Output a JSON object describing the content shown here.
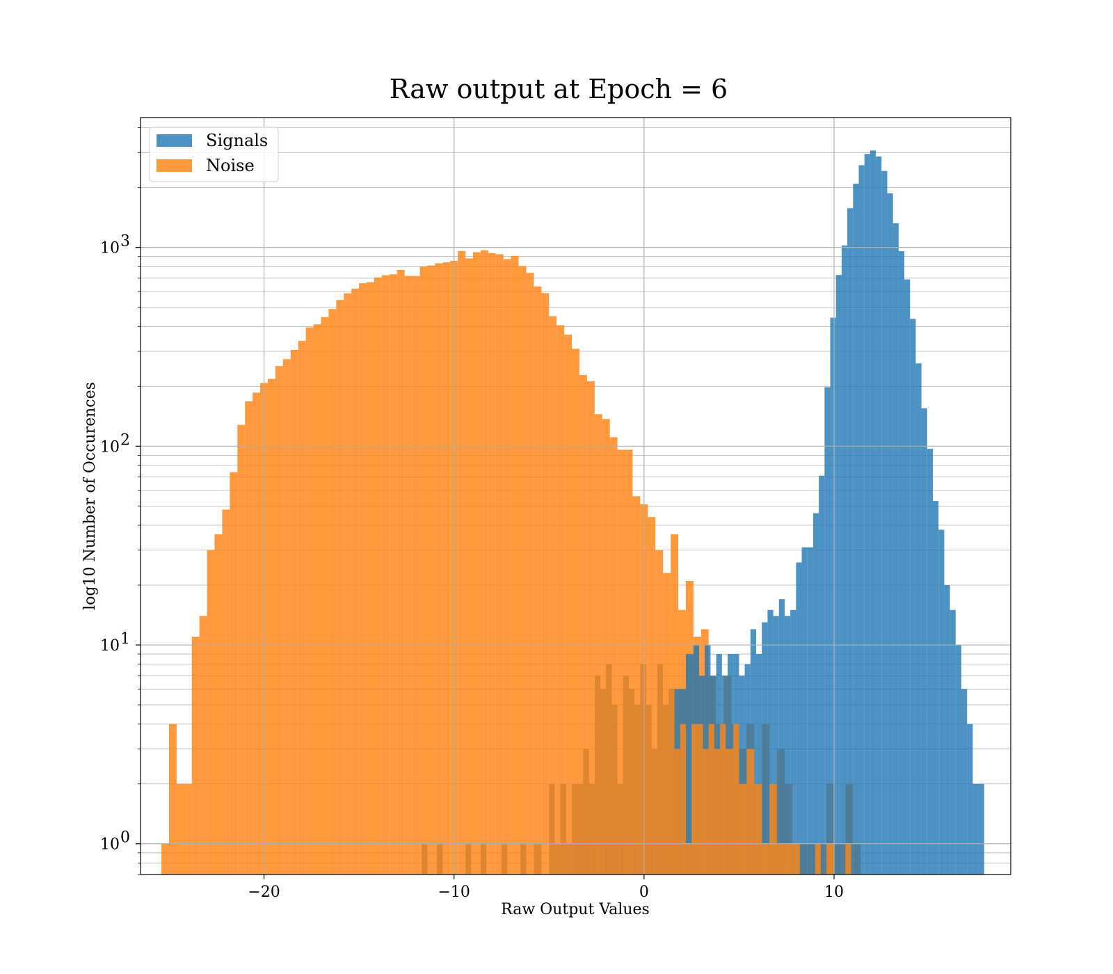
{
  "chart_data": {
    "type": "bar",
    "histogram": true,
    "title": "Raw output at Epoch = 6",
    "xlabel": "Raw Output Values",
    "ylabel": "log10 Number of Occurences",
    "xlim": [
      -26.5,
      19.3
    ],
    "ylim": [
      0.7,
      4500
    ],
    "y_scale": "log",
    "grid": true,
    "legend": "top-left",
    "x_ticks": [
      -20,
      -10,
      0,
      10
    ],
    "x_tick_labels": [
      "−20",
      "−10",
      "0",
      "10"
    ],
    "y_ticks": [
      1,
      10,
      100,
      1000
    ],
    "y_tick_labels": [
      "10",
      "10",
      "10",
      "10"
    ],
    "y_tick_exponents": [
      "0",
      "1",
      "2",
      "3"
    ],
    "series": [
      {
        "name": "Signals",
        "color": "#1f77b4",
        "bins": [
          [
            -3.8,
            -0.2,
            1
          ],
          [
            -0.2,
            1.5,
            1
          ],
          [
            1.5,
            2.2,
            6
          ],
          [
            2.2,
            2.6,
            9
          ],
          [
            2.6,
            2.9,
            10
          ],
          [
            2.9,
            3.2,
            7
          ],
          [
            3.2,
            3.5,
            10
          ],
          [
            3.5,
            3.8,
            7
          ],
          [
            3.8,
            4.1,
            9
          ],
          [
            4.1,
            4.4,
            7
          ],
          [
            4.4,
            4.7,
            9
          ],
          [
            4.7,
            5.0,
            9
          ],
          [
            5.0,
            5.3,
            7
          ],
          [
            5.3,
            5.6,
            8
          ],
          [
            5.6,
            5.9,
            12
          ],
          [
            5.9,
            6.2,
            9
          ],
          [
            6.2,
            6.5,
            13
          ],
          [
            6.5,
            6.8,
            15
          ],
          [
            6.8,
            7.1,
            14
          ],
          [
            7.1,
            7.4,
            17
          ],
          [
            7.4,
            7.7,
            14
          ],
          [
            7.7,
            8.0,
            15
          ],
          [
            8.0,
            8.3,
            26
          ],
          [
            8.3,
            8.6,
            31
          ],
          [
            8.6,
            8.9,
            31
          ],
          [
            8.9,
            9.2,
            46
          ],
          [
            9.2,
            9.5,
            71
          ],
          [
            9.5,
            9.8,
            198
          ],
          [
            9.8,
            10.1,
            443
          ],
          [
            10.1,
            10.4,
            727
          ],
          [
            10.4,
            10.7,
            1023
          ],
          [
            10.7,
            11.0,
            1575
          ],
          [
            11.0,
            11.3,
            2092
          ],
          [
            11.3,
            11.6,
            2593
          ],
          [
            11.6,
            11.9,
            2952
          ],
          [
            11.9,
            12.2,
            3072
          ],
          [
            12.2,
            12.5,
            2868
          ],
          [
            12.5,
            12.8,
            2424
          ],
          [
            12.8,
            13.1,
            1871
          ],
          [
            13.1,
            13.4,
            1323
          ],
          [
            13.4,
            13.7,
            957
          ],
          [
            13.7,
            14.0,
            690
          ],
          [
            14.0,
            14.3,
            437
          ],
          [
            14.3,
            14.6,
            261
          ],
          [
            14.6,
            14.9,
            155
          ],
          [
            14.9,
            15.2,
            97
          ],
          [
            15.2,
            15.5,
            53
          ],
          [
            15.5,
            15.8,
            38
          ],
          [
            15.8,
            16.1,
            20
          ],
          [
            16.1,
            16.4,
            15
          ],
          [
            16.4,
            16.7,
            10
          ],
          [
            16.7,
            17.0,
            6
          ],
          [
            17.0,
            17.3,
            4
          ],
          [
            17.3,
            17.6,
            2
          ],
          [
            17.6,
            17.9,
            2
          ]
        ]
      },
      {
        "name": "Noise",
        "color": "#ff7f0e",
        "bins": [
          [
            -25.4,
            -25.0,
            1
          ],
          [
            -25.0,
            -24.6,
            4
          ],
          [
            -24.6,
            -23.8,
            2
          ],
          [
            -23.8,
            -23.4,
            11
          ],
          [
            -23.4,
            -23.0,
            14
          ],
          [
            -23.0,
            -22.6,
            30
          ],
          [
            -22.6,
            -22.2,
            36
          ],
          [
            -22.2,
            -21.8,
            48
          ],
          [
            -21.8,
            -21.4,
            74
          ],
          [
            -21.4,
            -21.0,
            128
          ],
          [
            -21.0,
            -20.6,
            168
          ],
          [
            -20.6,
            -20.2,
            186
          ],
          [
            -20.2,
            -19.8,
            208
          ],
          [
            -19.8,
            -19.4,
            218
          ],
          [
            -19.4,
            -19.0,
            253
          ],
          [
            -19.0,
            -18.6,
            274
          ],
          [
            -18.6,
            -18.2,
            305
          ],
          [
            -18.2,
            -17.8,
            339
          ],
          [
            -17.8,
            -17.4,
            396
          ],
          [
            -17.4,
            -17.0,
            410
          ],
          [
            -17.0,
            -16.6,
            446
          ],
          [
            -16.6,
            -16.2,
            490
          ],
          [
            -16.2,
            -15.8,
            544
          ],
          [
            -15.8,
            -15.4,
            588
          ],
          [
            -15.4,
            -15.0,
            620
          ],
          [
            -15.0,
            -14.6,
            660
          ],
          [
            -14.6,
            -14.2,
            669
          ],
          [
            -14.2,
            -13.8,
            706
          ],
          [
            -13.8,
            -13.4,
            725
          ],
          [
            -13.4,
            -13.0,
            733
          ],
          [
            -13.0,
            -12.6,
            770
          ],
          [
            -12.6,
            -12.2,
            719
          ],
          [
            -12.2,
            -11.8,
            718
          ],
          [
            -11.8,
            -11.4,
            801
          ],
          [
            -11.4,
            -11.0,
            811
          ],
          [
            -11.0,
            -10.6,
            832
          ],
          [
            -10.6,
            -10.2,
            841
          ],
          [
            -10.2,
            -9.8,
            856
          ],
          [
            -9.8,
            -9.4,
            959
          ],
          [
            -9.4,
            -9.0,
            881
          ],
          [
            -9.0,
            -8.6,
            946
          ],
          [
            -8.6,
            -8.2,
            967
          ],
          [
            -8.2,
            -7.8,
            936
          ],
          [
            -7.8,
            -7.4,
            924
          ],
          [
            -7.4,
            -7.0,
            873
          ],
          [
            -7.0,
            -6.6,
            907
          ],
          [
            -6.6,
            -6.2,
            806
          ],
          [
            -6.2,
            -5.8,
            745
          ],
          [
            -5.8,
            -5.4,
            636
          ],
          [
            -5.4,
            -5.0,
            589
          ],
          [
            -5.0,
            -4.6,
            451
          ],
          [
            -4.6,
            -4.2,
            406
          ],
          [
            -4.2,
            -3.8,
            364
          ],
          [
            -3.8,
            -3.4,
            309
          ],
          [
            -3.4,
            -3.0,
            228
          ],
          [
            -3.0,
            -2.6,
            212
          ],
          [
            -2.6,
            -2.2,
            145
          ],
          [
            -2.2,
            -1.8,
            137
          ],
          [
            -1.8,
            -1.4,
            111
          ],
          [
            -1.4,
            -1.0,
            96
          ],
          [
            -1.0,
            -0.6,
            96
          ],
          [
            -0.6,
            -0.2,
            56
          ],
          [
            -0.2,
            0.2,
            51
          ],
          [
            0.2,
            0.6,
            44
          ],
          [
            0.6,
            1.0,
            30
          ],
          [
            1.0,
            1.4,
            23
          ],
          [
            1.4,
            1.8,
            36
          ],
          [
            1.8,
            2.2,
            15
          ],
          [
            2.2,
            2.6,
            21
          ],
          [
            2.6,
            3.0,
            11
          ],
          [
            3.0,
            3.4,
            12
          ],
          [
            3.4,
            3.8,
            7
          ],
          [
            3.8,
            4.2,
            4
          ],
          [
            4.2,
            4.6,
            7
          ],
          [
            4.6,
            5.0,
            4
          ],
          [
            5.0,
            5.4,
            3
          ],
          [
            5.4,
            5.8,
            4
          ],
          [
            5.8,
            6.2,
            2
          ],
          [
            6.2,
            6.6,
            4
          ],
          [
            6.6,
            7.0,
            2
          ],
          [
            7.0,
            7.4,
            3
          ],
          [
            7.4,
            7.8,
            2
          ],
          [
            7.8,
            8.2,
            1
          ],
          [
            8.2,
            8.6,
            1
          ],
          [
            8.6,
            9.0,
            1
          ],
          [
            9.0,
            9.6,
            1
          ],
          [
            9.6,
            10.0,
            2
          ],
          [
            10.0,
            10.6,
            1
          ],
          [
            10.6,
            11.0,
            2
          ],
          [
            11.0,
            11.4,
            1
          ]
        ]
      },
      {
        "name": "",
        "role": "overlap",
        "color": "#de8530",
        "bins": [
          [
            -11.7,
            -11.4,
            1
          ],
          [
            -10.9,
            -10.6,
            1
          ],
          [
            -9.4,
            -9.1,
            1
          ],
          [
            -8.6,
            -8.3,
            1
          ],
          [
            -7.5,
            -7.2,
            1
          ],
          [
            -6.5,
            -6.2,
            1
          ],
          [
            -5.8,
            -5.4,
            1
          ],
          [
            -5.0,
            -4.7,
            2
          ],
          [
            -4.7,
            -4.4,
            1
          ],
          [
            -4.4,
            -4.1,
            2
          ],
          [
            -4.1,
            -3.8,
            1
          ],
          [
            -3.8,
            -3.5,
            2
          ],
          [
            -3.5,
            -3.2,
            2
          ],
          [
            -3.2,
            -2.9,
            3
          ],
          [
            -2.9,
            -2.6,
            2
          ],
          [
            -2.6,
            -2.3,
            7
          ],
          [
            -2.3,
            -2.0,
            6
          ],
          [
            -2.0,
            -1.7,
            8
          ],
          [
            -1.7,
            -1.4,
            5
          ],
          [
            -1.4,
            -1.1,
            2
          ],
          [
            -1.1,
            -0.8,
            7
          ],
          [
            -0.8,
            -0.5,
            6
          ],
          [
            -0.5,
            -0.2,
            5
          ],
          [
            -0.2,
            0.1,
            8
          ],
          [
            0.1,
            0.4,
            5
          ],
          [
            0.4,
            0.7,
            3
          ],
          [
            0.7,
            1.0,
            8
          ],
          [
            1.0,
            1.3,
            5
          ],
          [
            1.3,
            1.6,
            6
          ],
          [
            1.6,
            1.9,
            3
          ],
          [
            1.9,
            2.2,
            4
          ],
          [
            2.2,
            2.5,
            1
          ],
          [
            2.5,
            2.8,
            4
          ],
          [
            2.8,
            3.1,
            4
          ],
          [
            3.1,
            3.4,
            3
          ],
          [
            3.4,
            3.7,
            4
          ],
          [
            3.7,
            4.0,
            3
          ],
          [
            4.0,
            4.3,
            4
          ],
          [
            4.3,
            4.7,
            3
          ],
          [
            4.7,
            5.0,
            4
          ],
          [
            5.0,
            5.4,
            2
          ],
          [
            5.4,
            5.8,
            3
          ],
          [
            5.8,
            6.2,
            2
          ],
          [
            6.2,
            6.6,
            1
          ],
          [
            6.6,
            7.0,
            2
          ],
          [
            7.0,
            7.4,
            1
          ],
          [
            7.4,
            7.8,
            1
          ],
          [
            7.8,
            8.2,
            1
          ],
          [
            9.0,
            9.3,
            1
          ],
          [
            9.6,
            10.0,
            1
          ],
          [
            10.6,
            10.9,
            1
          ]
        ]
      }
    ]
  }
}
